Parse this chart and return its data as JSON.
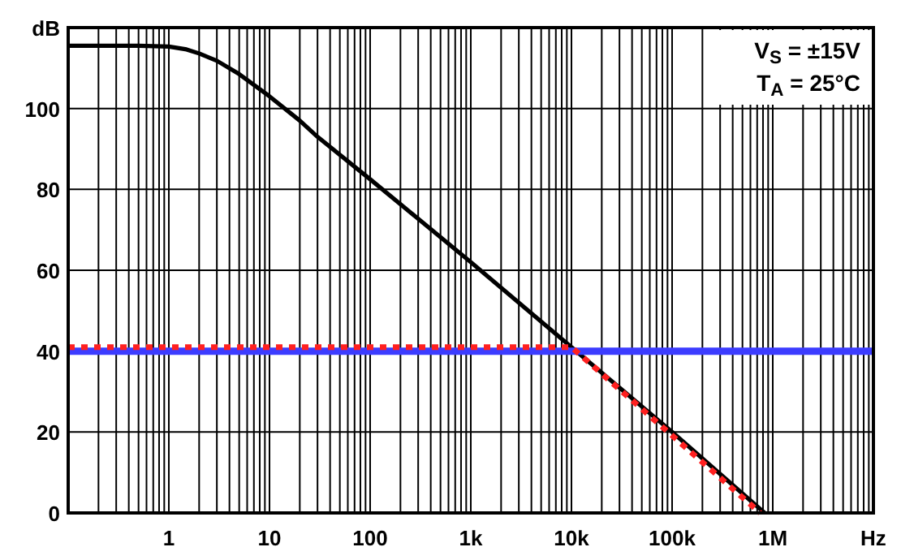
{
  "chart_data": {
    "type": "line",
    "log": "x",
    "grid": true,
    "xlim": [
      0.1,
      10000000
    ],
    "xticks": [
      {
        "value": 1,
        "label": "1"
      },
      {
        "value": 10,
        "label": "10"
      },
      {
        "value": 100,
        "label": "100"
      },
      {
        "value": 1000,
        "label": "1k"
      },
      {
        "value": 10000,
        "label": "10k"
      },
      {
        "value": 100000,
        "label": "100k"
      },
      {
        "value": 1000000,
        "label": "1M"
      },
      {
        "value": 10000000,
        "label": "Hz"
      }
    ],
    "ylim": [
      0,
      120
    ],
    "yticks": [
      0,
      20,
      40,
      60,
      80,
      100,
      {
        "value": 120,
        "label": "dB"
      }
    ],
    "annotations": [
      "V$_{S}$ = ±15V",
      "T$_{A}$ = 25°C"
    ],
    "series": [
      {
        "color": "#000000",
        "line_style": "solid",
        "x": [
          0.1,
          0.5,
          1,
          1.5,
          2,
          3,
          5,
          10,
          20,
          30,
          100,
          1000,
          10000,
          100000,
          830000
        ],
        "values": [
          115.5,
          115.5,
          115.3,
          114.6,
          113.6,
          111.8,
          108.5,
          103,
          97,
          93,
          82.5,
          62,
          41,
          20,
          0
        ]
      },
      {
        "color": "#3c3cff",
        "line_style": "solid",
        "x": [
          0.1,
          10000000
        ],
        "values": [
          40,
          40
        ]
      },
      {
        "color": "#ff2020",
        "line_style": "dotted",
        "x": [
          0.1,
          10000,
          750000
        ],
        "values": [
          41,
          41,
          0
        ]
      }
    ]
  }
}
